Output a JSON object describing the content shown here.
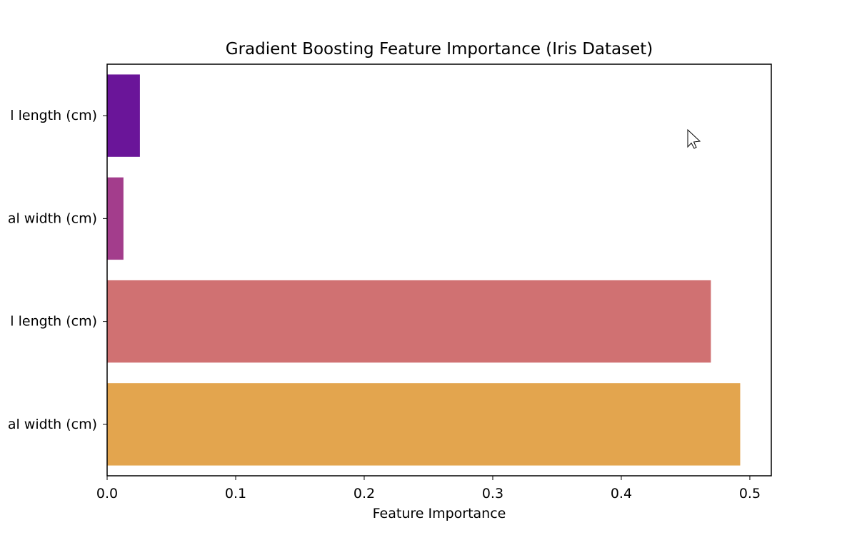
{
  "chart_data": {
    "type": "bar",
    "orientation": "horizontal",
    "title": "Gradient Boosting Feature Importance (Iris Dataset)",
    "xlabel": "Feature Importance",
    "ylabel": "",
    "categories": [
      "l length (cm)",
      "al width (cm)",
      "l length (cm)",
      "al width (cm)"
    ],
    "values": [
      0.0255,
      0.0127,
      0.4697,
      0.4925
    ],
    "colors": [
      "#6a1599",
      "#a33d8c",
      "#d07172",
      "#e3a54e"
    ],
    "xlim": [
      0,
      0.5167
    ],
    "xticks": [
      "0.0",
      "0.1",
      "0.2",
      "0.3",
      "0.4",
      "0.5"
    ],
    "grid": false
  },
  "cursor": {
    "icon": "mouse-pointer-icon"
  }
}
